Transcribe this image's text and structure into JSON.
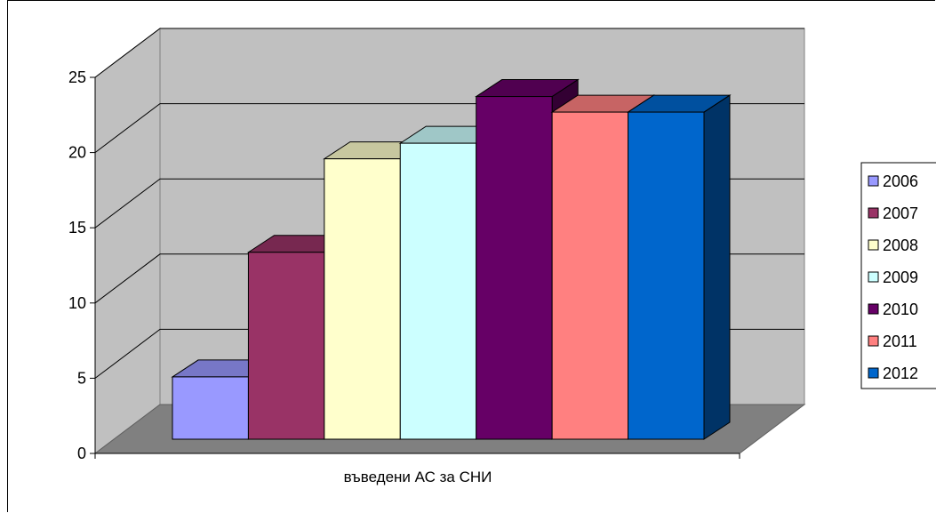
{
  "chart_data": {
    "type": "bar",
    "style": "3d-clustered-column",
    "categories": [
      "въведени АС за СНИ"
    ],
    "xlabel": "въведени АС за СНИ",
    "ylim": [
      0,
      25
    ],
    "yticks": [
      0,
      5,
      10,
      15,
      20,
      25
    ],
    "grid": true,
    "legend_position": "right",
    "series": [
      {
        "name": "2006",
        "values": [
          4
        ],
        "color": "#9999FF"
      },
      {
        "name": "2007",
        "values": [
          12
        ],
        "color": "#993366"
      },
      {
        "name": "2008",
        "values": [
          18
        ],
        "color": "#FFFFCC"
      },
      {
        "name": "2009",
        "values": [
          19
        ],
        "color": "#CCFFFF"
      },
      {
        "name": "2010",
        "values": [
          22
        ],
        "color": "#660066"
      },
      {
        "name": "2011",
        "values": [
          21
        ],
        "color": "#FF8080"
      },
      {
        "name": "2012",
        "values": [
          21
        ],
        "color": "#0066CC"
      }
    ]
  }
}
